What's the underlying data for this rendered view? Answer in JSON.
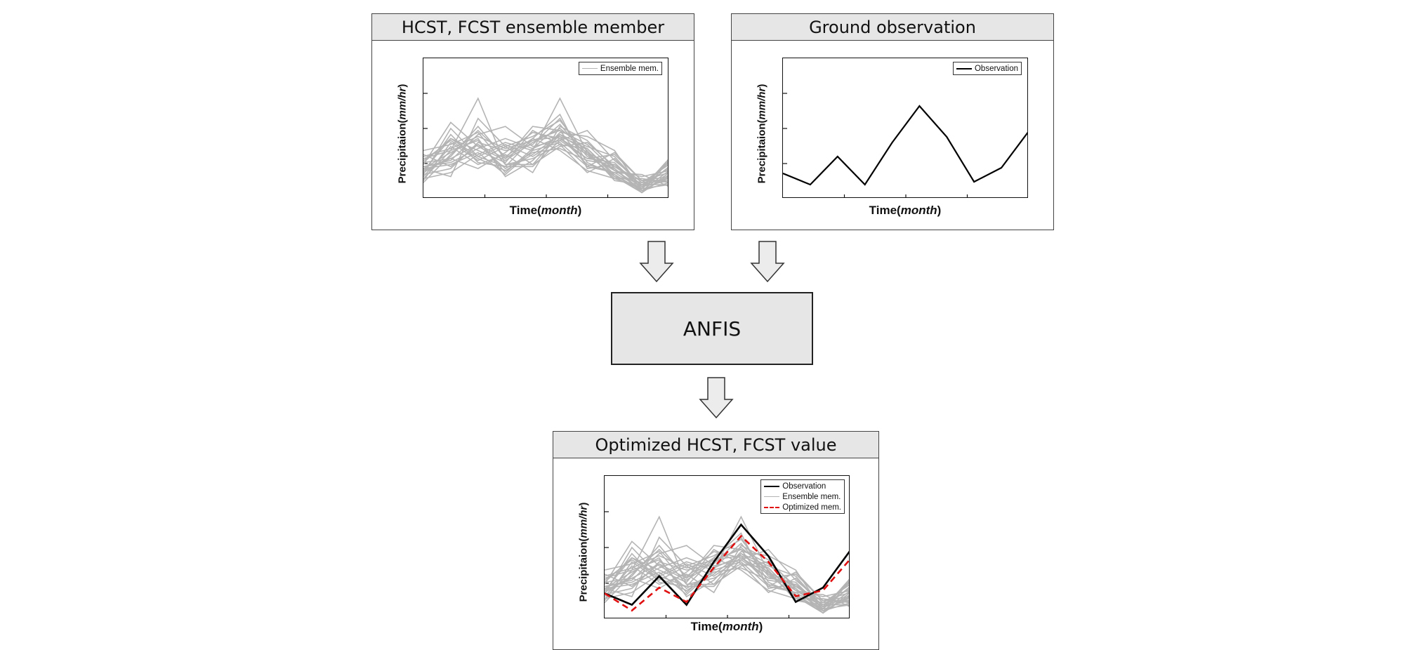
{
  "panels": {
    "ensemble": {
      "title": "HCST, FCST ensemble member"
    },
    "observation": {
      "title": "Ground observation"
    },
    "optimized": {
      "title": "Optimized HCST, FCST value"
    }
  },
  "process": {
    "label": "ANFIS"
  },
  "axes": {
    "ylabel_prefix": "Precipitaion",
    "ylabel_unit": "mm/hr",
    "xlabel_prefix": "Time",
    "xlabel_unit": "month"
  },
  "legend": {
    "observation": "Observation",
    "ensemble": "Ensemble mem.",
    "optimized": "Optimized mem."
  },
  "colors": {
    "ensemble": "#b4b4b4",
    "observation": "#000000",
    "optimized": "#e01010",
    "panel_header": "#e6e6e6"
  },
  "chart_data": [
    {
      "type": "line",
      "panel": "ensemble",
      "xlabel": "Time(month)",
      "ylabel": "Precipitaion(mm/hr)",
      "x": [
        0,
        1,
        2,
        3,
        4,
        5,
        6,
        7,
        8,
        9
      ],
      "series_name": "Ensemble mem.",
      "series": [
        [
          1.5,
          1.1,
          4.0,
          2.6,
          1.7,
          3.2,
          2.3,
          1.0,
          0.5,
          1.6
        ],
        [
          1.2,
          3.5,
          2.1,
          1.6,
          3.0,
          4.2,
          1.5,
          1.7,
          0.7,
          1.0
        ],
        [
          2.0,
          2.4,
          2.9,
          1.3,
          2.5,
          3.1,
          2.5,
          1.2,
          0.4,
          0.8
        ],
        [
          1.6,
          1.9,
          3.2,
          3.6,
          2.6,
          2.9,
          2.0,
          2.2,
          0.9,
          1.3
        ],
        [
          1.1,
          2.6,
          1.7,
          2.2,
          1.3,
          3.6,
          2.9,
          1.5,
          0.3,
          1.9
        ],
        [
          1.8,
          3.0,
          2.4,
          1.8,
          3.4,
          2.7,
          1.3,
          2.0,
          0.6,
          0.9
        ],
        [
          1.3,
          2.1,
          3.6,
          2.0,
          2.9,
          3.4,
          2.7,
          1.4,
          1.1,
          1.4
        ],
        [
          2.2,
          1.6,
          2.7,
          1.5,
          2.3,
          2.5,
          1.9,
          1.7,
          0.5,
          0.7
        ],
        [
          0.9,
          2.8,
          1.9,
          2.6,
          3.1,
          3.9,
          2.2,
          1.1,
          0.8,
          1.7
        ],
        [
          1.5,
          2.3,
          3.0,
          1.1,
          1.9,
          3.3,
          3.1,
          2.4,
          0.4,
          1.1
        ],
        [
          1.0,
          1.3,
          2.2,
          2.8,
          2.4,
          2.8,
          1.6,
          1.3,
          1.2,
          0.6
        ],
        [
          1.7,
          3.8,
          2.6,
          1.9,
          2.8,
          3.5,
          2.4,
          0.9,
          0.7,
          1.5
        ],
        [
          1.4,
          2.0,
          1.5,
          2.3,
          3.3,
          3.0,
          2.0,
          1.8,
          0.5,
          2.0
        ],
        [
          2.4,
          2.7,
          3.3,
          1.7,
          1.7,
          2.6,
          2.8,
          1.6,
          0.9,
          0.9
        ],
        [
          1.2,
          1.5,
          2.8,
          2.4,
          2.7,
          4.0,
          1.8,
          1.2,
          0.3,
          1.2
        ],
        [
          1.9,
          2.9,
          2.0,
          1.4,
          2.2,
          3.2,
          2.6,
          2.1,
          0.6,
          1.8
        ],
        [
          0.8,
          2.2,
          3.4,
          2.1,
          3.0,
          2.4,
          1.4,
          1.0,
          1.0,
          0.8
        ],
        [
          1.6,
          1.8,
          2.5,
          3.0,
          2.5,
          3.7,
          2.1,
          1.5,
          0.4,
          1.4
        ],
        [
          1.3,
          3.2,
          1.8,
          1.6,
          1.6,
          2.9,
          3.4,
          1.9,
          0.8,
          1.0
        ],
        [
          2.1,
          2.5,
          3.1,
          2.5,
          2.9,
          3.1,
          1.7,
          1.3,
          0.5,
          1.6
        ],
        [
          1.5,
          1.7,
          2.3,
          1.2,
          2.4,
          5.0,
          2.3,
          1.6,
          0.7,
          0.7
        ],
        [
          1.0,
          2.4,
          5.0,
          1.7,
          2.0,
          2.7,
          2.5,
          1.1,
          0.3,
          1.3
        ],
        [
          1.8,
          2.0,
          2.7,
          2.0,
          3.6,
          3.4,
          1.6,
          2.3,
          0.9,
          1.1
        ],
        [
          1.4,
          3.0,
          2.1,
          2.7,
          2.1,
          3.0,
          2.2,
          1.4,
          0.6,
          1.9
        ]
      ],
      "ylim": [
        0,
        7
      ]
    },
    {
      "type": "line",
      "panel": "observation",
      "xlabel": "Time(month)",
      "ylabel": "Precipitaion(mm/hr)",
      "x": [
        0,
        1,
        2,
        3,
        4,
        5,
        6,
        7,
        8,
        9
      ],
      "series": [
        {
          "name": "Observation",
          "values": [
            0.9,
            0.5,
            1.5,
            0.5,
            2.0,
            3.3,
            2.2,
            0.6,
            1.1,
            2.4
          ]
        }
      ],
      "ylim": [
        0,
        5
      ]
    },
    {
      "type": "line",
      "panel": "optimized",
      "xlabel": "Time(month)",
      "ylabel": "Precipitaion(mm/hr)",
      "x": [
        0,
        1,
        2,
        3,
        4,
        5,
        6,
        7,
        8,
        9
      ],
      "series": [
        {
          "name": "Observation",
          "values": [
            0.9,
            0.5,
            1.5,
            0.5,
            2.0,
            3.3,
            2.2,
            0.6,
            1.1,
            2.4
          ]
        },
        {
          "name": "Optimized mem.",
          "values": [
            0.9,
            0.3,
            1.1,
            0.6,
            1.8,
            2.9,
            2.0,
            0.8,
            1.0,
            2.1
          ]
        },
        {
          "name": "Ensemble mem.",
          "ref": "chart_data.0.series"
        }
      ],
      "ylim": [
        0,
        5
      ]
    }
  ]
}
